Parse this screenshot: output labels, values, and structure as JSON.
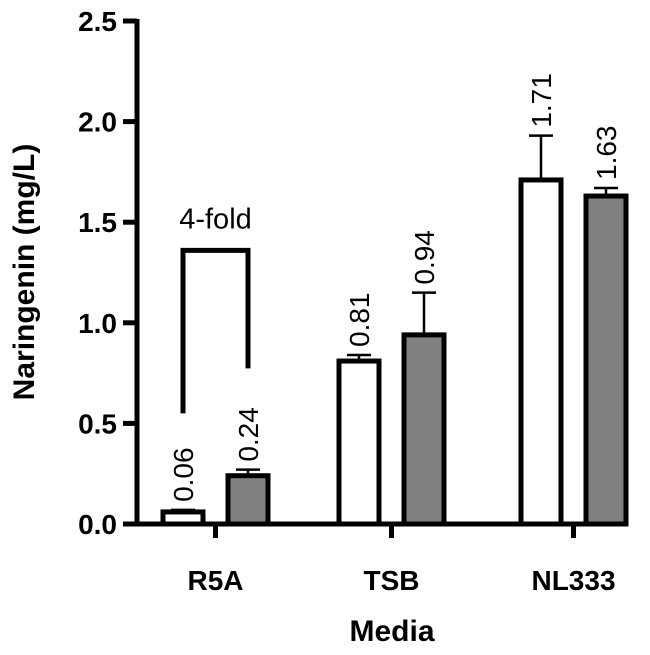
{
  "chart_data": {
    "type": "bar",
    "xlabel": "Media",
    "ylabel": "Naringenin (mg/L)",
    "ylim": [
      0,
      2.5
    ],
    "yticks": [
      "0.0",
      "0.5",
      "1.0",
      "1.5",
      "2.0",
      "2.5"
    ],
    "categories": [
      "R5A",
      "TSB",
      "NL333"
    ],
    "grid": false,
    "series": [
      {
        "fill": "#ffffff",
        "values": [
          0.06,
          0.81,
          1.71
        ],
        "errors": [
          0.01,
          0.03,
          0.22
        ],
        "labels": [
          "0.06",
          "0.81",
          "1.71"
        ]
      },
      {
        "fill": "#808080",
        "values": [
          0.24,
          0.94,
          1.63
        ],
        "errors": [
          0.03,
          0.21,
          0.04
        ],
        "labels": [
          "0.24",
          "0.94",
          "1.63"
        ]
      }
    ],
    "annotation": {
      "text": "4-fold",
      "category": "R5A",
      "bracket_top": 1.36,
      "bracket_bottom": 0.55
    }
  }
}
